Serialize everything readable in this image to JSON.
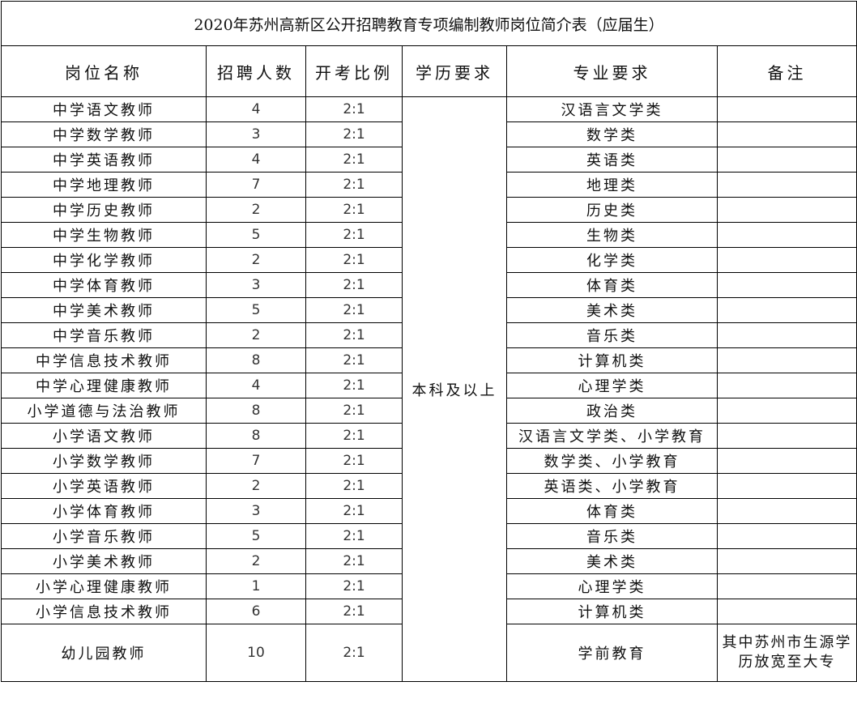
{
  "title": "2020年苏州高新区公开招聘教育专项编制教师岗位简介表（应届生）",
  "headers": [
    "岗位名称",
    "招聘人数",
    "开考比例",
    "学历要求",
    "专业要求",
    "备注"
  ],
  "education_requirement": "本科及以上",
  "rows": [
    {
      "position": "中学语文教师",
      "count": "4",
      "ratio": "2:1",
      "major": "汉语言文学类",
      "note": ""
    },
    {
      "position": "中学数学教师",
      "count": "3",
      "ratio": "2:1",
      "major": "数学类",
      "note": ""
    },
    {
      "position": "中学英语教师",
      "count": "4",
      "ratio": "2:1",
      "major": "英语类",
      "note": ""
    },
    {
      "position": "中学地理教师",
      "count": "7",
      "ratio": "2:1",
      "major": "地理类",
      "note": ""
    },
    {
      "position": "中学历史教师",
      "count": "2",
      "ratio": "2:1",
      "major": "历史类",
      "note": ""
    },
    {
      "position": "中学生物教师",
      "count": "5",
      "ratio": "2:1",
      "major": "生物类",
      "note": ""
    },
    {
      "position": "中学化学教师",
      "count": "2",
      "ratio": "2:1",
      "major": "化学类",
      "note": ""
    },
    {
      "position": "中学体育教师",
      "count": "3",
      "ratio": "2:1",
      "major": "体育类",
      "note": ""
    },
    {
      "position": "中学美术教师",
      "count": "5",
      "ratio": "2:1",
      "major": "美术类",
      "note": ""
    },
    {
      "position": "中学音乐教师",
      "count": "2",
      "ratio": "2:1",
      "major": "音乐类",
      "note": ""
    },
    {
      "position": "中学信息技术教师",
      "count": "8",
      "ratio": "2:1",
      "major": "计算机类",
      "note": ""
    },
    {
      "position": "中学心理健康教师",
      "count": "4",
      "ratio": "2:1",
      "major": "心理学类",
      "note": ""
    },
    {
      "position": "小学道德与法治教师",
      "count": "8",
      "ratio": "2:1",
      "major": "政治类",
      "note": ""
    },
    {
      "position": "小学语文教师",
      "count": "8",
      "ratio": "2:1",
      "major": "汉语言文学类、小学教育",
      "note": ""
    },
    {
      "position": "小学数学教师",
      "count": "7",
      "ratio": "2:1",
      "major": "数学类、小学教育",
      "note": ""
    },
    {
      "position": "小学英语教师",
      "count": "2",
      "ratio": "2:1",
      "major": "英语类、小学教育",
      "note": ""
    },
    {
      "position": "小学体育教师",
      "count": "3",
      "ratio": "2:1",
      "major": "体育类",
      "note": ""
    },
    {
      "position": "小学音乐教师",
      "count": "5",
      "ratio": "2:1",
      "major": "音乐类",
      "note": ""
    },
    {
      "position": "小学美术教师",
      "count": "2",
      "ratio": "2:1",
      "major": "美术类",
      "note": ""
    },
    {
      "position": "小学心理健康教师",
      "count": "1",
      "ratio": "2:1",
      "major": "心理学类",
      "note": ""
    },
    {
      "position": "小学信息技术教师",
      "count": "6",
      "ratio": "2:1",
      "major": "计算机类",
      "note": ""
    },
    {
      "position": "幼儿园教师",
      "count": "10",
      "ratio": "2:1",
      "major": "学前教育",
      "note": "其中苏州市生源学历放宽至大专"
    }
  ]
}
